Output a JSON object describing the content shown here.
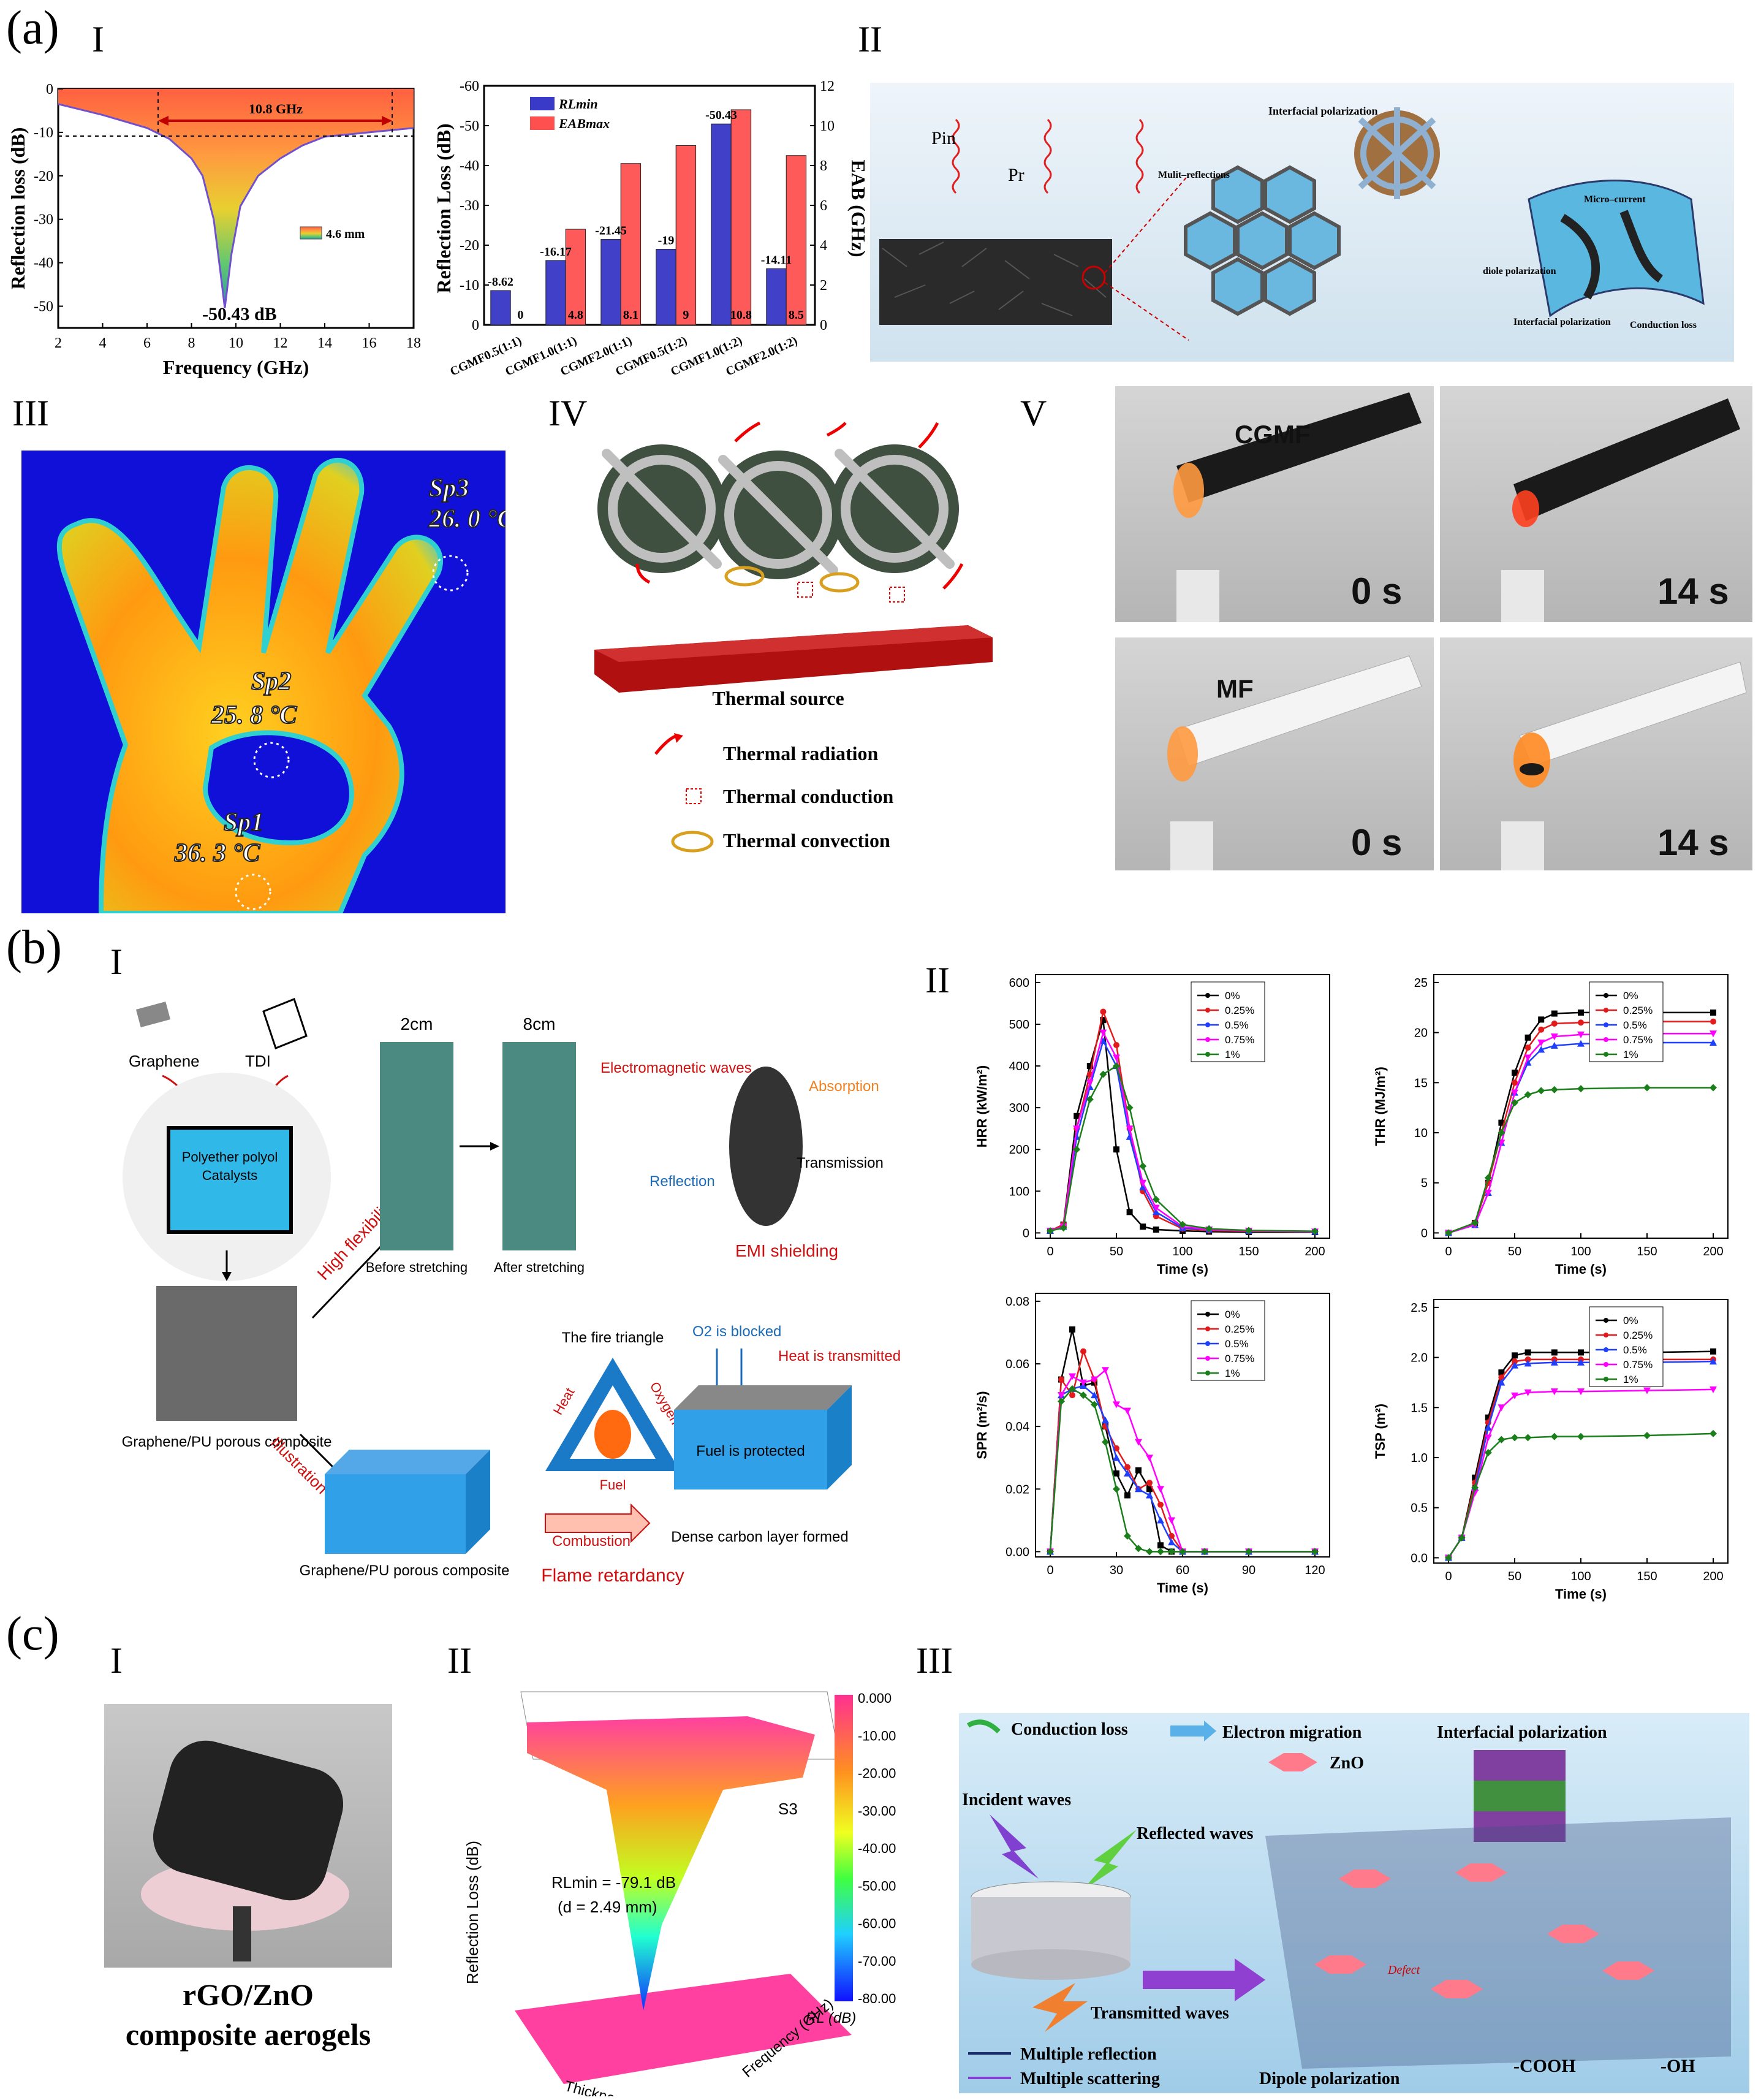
{
  "labels": {
    "a": "(a)",
    "b": "(b)",
    "c": "(c)",
    "I": "I",
    "II": "II",
    "III": "III",
    "IV": "IV",
    "V": "V"
  },
  "a1_rl": {
    "ylabel": "Reflection loss (dB)",
    "xlabel": "Frequency (GHz)",
    "bandwidth": "10.8 GHz",
    "legend": "4.6 mm",
    "minimum": "-50.43 dB",
    "xticks": [
      "2",
      "4",
      "6",
      "8",
      "10",
      "12",
      "14",
      "16",
      "18"
    ],
    "yticks": [
      "0",
      "-10",
      "-20",
      "-30",
      "-40",
      "-50"
    ]
  },
  "a1_bar": {
    "ylabel": "Reflection Loss (dB)",
    "y2label": "EAB (GHz)",
    "legend_rl": "RLmin",
    "legend_eab": "EABmax",
    "yticks": [
      "-60",
      "-50",
      "-40",
      "-30",
      "-20",
      "-10",
      "0"
    ],
    "y2ticks": [
      "12",
      "10",
      "8",
      "6",
      "4",
      "2",
      "0"
    ]
  },
  "a2": {
    "pin": "Pin",
    "pr": "Pr",
    "interfacial": "Interfacial polarization",
    "multi": "Mulit–reflections",
    "micro": "Micro–current",
    "diole": "diole polarization",
    "interfacial2": "Interfacial polarization",
    "conduction": "Conduction loss"
  },
  "a3": {
    "sp3": "Sp3",
    "sp3_val": "26. 0 °C",
    "sp2": "Sp2",
    "sp2_val": "25. 8 °C",
    "sp1": "Sp1",
    "sp1_val": "36. 3 °C"
  },
  "a4": {
    "source": "Thermal source",
    "radiation": "Thermal radiation",
    "conduction": "Thermal conduction",
    "convection": "Thermal convection"
  },
  "a5": {
    "cgmf": "CGMF",
    "mf": "MF",
    "t0a": "0 s",
    "t14a": "14 s",
    "t0b": "0 s",
    "t14b": "14 s"
  },
  "b1": {
    "graphene": "Graphene",
    "tdi": "TDI",
    "polyol": "Polyether polyol",
    "catalysts": "Catalysts",
    "high_flex": "High flexibility",
    "c2": "2cm",
    "c8": "8cm",
    "before": "Before stretching",
    "after": "After stretching",
    "em_waves": "Electromagnetic waves",
    "absorption": "Absorption",
    "transmission": "Transmission",
    "reflection": "Reflection",
    "emi": "EMI shielding",
    "composite1": "Graphene/PU porous composite",
    "illustration": "Illustration",
    "fire_triangle": "The fire triangle",
    "heat": "Heat",
    "oxygen": "Oxygen",
    "fuel": "Fuel",
    "o2_blocked": "O2 is blocked",
    "heat_trans": "Heat is transmitted",
    "fuel_protected": "Fuel is protected",
    "composite2": "Graphene/PU porous composite",
    "combustion": "Combustion",
    "dense": "Dense carbon layer formed",
    "flame": "Flame retardancy"
  },
  "b2": {
    "legend": [
      "0%",
      "0.25%",
      "0.5%",
      "0.75%",
      "1%"
    ],
    "hrr": {
      "ylabel": "HRR (kW/m²)",
      "xlabel": "Time (s)"
    },
    "thr": {
      "ylabel": "THR (MJ/m²)",
      "xlabel": "Time (s)"
    },
    "spr": {
      "ylabel": "SPR (m²/s)",
      "xlabel": "Time (s)"
    },
    "tsp": {
      "ylabel": "TSP (m²)",
      "xlabel": "Time (s)"
    }
  },
  "c1": {
    "caption1": "rGO/ZnO",
    "caption2": "composite aerogels"
  },
  "c2": {
    "zlabel": "Reflection Loss (dB)",
    "xlabel": "Thickness (mm)",
    "ylabel": "Frequency (GHz)",
    "s3": "S3",
    "rlmin": "RLmin = -79.1 dB",
    "d": "(d = 2.49 mm)",
    "cb_label": "RL (dB)",
    "cb_ticks": [
      "0.000",
      "-10.00",
      "-20.00",
      "-30.00",
      "-40.00",
      "-50.00",
      "-60.00",
      "-70.00",
      "-80.00"
    ]
  },
  "c3": {
    "conduction": "Conduction loss",
    "electron": "Electron migration",
    "interfacial": "Interfacial polarization",
    "zno": "ZnO",
    "incident": "Incident waves",
    "reflected": "Reflected waves",
    "transmitted": "Transmitted waves",
    "multi_ref": "Multiple reflection",
    "multi_scat": "Multiple scattering",
    "dipole": "Dipole polarization",
    "defect": "Defect",
    "cooh": "-COOH",
    "oh": "-OH"
  },
  "chart_data": [
    {
      "type": "line",
      "title": "",
      "xlabel": "Frequency (GHz)",
      "ylabel": "Reflection loss (dB)",
      "xlim": [
        2,
        18
      ],
      "ylim": [
        -55,
        0
      ],
      "series": [
        {
          "name": "4.6 mm",
          "x": [
            2,
            4,
            6,
            7,
            8,
            8.5,
            9,
            9.3,
            9.5,
            9.8,
            10.2,
            11,
            12,
            13,
            14,
            15,
            16,
            17,
            18
          ],
          "values": [
            -3.5,
            -6,
            -9,
            -11.5,
            -16,
            -20,
            -30,
            -42,
            -50.43,
            -38,
            -27,
            -20,
            -16,
            -13,
            -11,
            -10.5,
            -10,
            -9.5,
            -9
          ]
        }
      ]
    },
    {
      "type": "bar",
      "categories": [
        "CGMF0.5(1:1)",
        "CGMF1.0(1:1)",
        "CGMF2.0(1:1)",
        "CGMF0.5(1:2)",
        "CGMF1.0(1:2)",
        "CGMF2.0(1:2)"
      ],
      "series": [
        {
          "name": "RLmin",
          "values": [
            -8.62,
            -16.17,
            -21.45,
            -19,
            -50.43,
            -14.11
          ]
        },
        {
          "name": "EABmax",
          "values": [
            0,
            4.8,
            8.1,
            9,
            10.8,
            8.5
          ]
        }
      ],
      "ylabel": "Reflection Loss (dB)",
      "y2label": "EAB (GHz)",
      "ylim": [
        0,
        -60
      ],
      "y2lim": [
        0,
        12
      ]
    },
    {
      "type": "line",
      "xlabel": "Time (s)",
      "ylabel": "HRR (kW/m²)",
      "xlim": [
        0,
        200
      ],
      "ylim": [
        0,
        600
      ],
      "x": [
        0,
        10,
        20,
        30,
        40,
        50,
        60,
        70,
        80,
        100,
        120,
        150,
        200
      ],
      "series": [
        {
          "name": "0%",
          "values": [
            5,
            20,
            280,
            400,
            510,
            200,
            50,
            15,
            8,
            5,
            3,
            2,
            2
          ]
        },
        {
          "name": "0.25%",
          "values": [
            5,
            20,
            250,
            380,
            530,
            450,
            250,
            100,
            40,
            10,
            6,
            4,
            3
          ]
        },
        {
          "name": "0.5%",
          "values": [
            5,
            15,
            230,
            350,
            460,
            400,
            230,
            110,
            50,
            12,
            8,
            5,
            3
          ]
        },
        {
          "name": "0.75%",
          "values": [
            5,
            15,
            250,
            360,
            480,
            420,
            250,
            120,
            60,
            15,
            8,
            5,
            3
          ]
        },
        {
          "name": "1%",
          "values": [
            5,
            12,
            200,
            320,
            380,
            400,
            300,
            160,
            80,
            20,
            10,
            6,
            4
          ]
        }
      ]
    },
    {
      "type": "line",
      "xlabel": "Time (s)",
      "ylabel": "THR (MJ/m²)",
      "xlim": [
        0,
        200
      ],
      "ylim": [
        0,
        25
      ],
      "x": [
        0,
        20,
        30,
        40,
        50,
        60,
        70,
        80,
        100,
        150,
        200
      ],
      "series": [
        {
          "name": "0%",
          "values": [
            0,
            1,
            5,
            11,
            16,
            19.5,
            21.3,
            21.9,
            22,
            22,
            22
          ]
        },
        {
          "name": "0.25%",
          "values": [
            0,
            1,
            5,
            10,
            15,
            18.5,
            20.3,
            20.9,
            21,
            21.1,
            21.1
          ]
        },
        {
          "name": "0.5%",
          "values": [
            0,
            0.8,
            4,
            9,
            14,
            17,
            18.3,
            18.7,
            18.9,
            19,
            19
          ]
        },
        {
          "name": "0.75%",
          "values": [
            0,
            0.8,
            4,
            9,
            14,
            17.5,
            19,
            19.6,
            19.8,
            19.9,
            19.9
          ]
        },
        {
          "name": "1%",
          "values": [
            0,
            1,
            5.5,
            10,
            13,
            13.8,
            14.2,
            14.3,
            14.4,
            14.5,
            14.5
          ]
        }
      ]
    },
    {
      "type": "line",
      "xlabel": "Time (s)",
      "ylabel": "SPR (m²/s)",
      "xlim": [
        0,
        120
      ],
      "ylim": [
        0,
        0.08
      ],
      "x": [
        0,
        5,
        10,
        15,
        20,
        25,
        30,
        35,
        40,
        45,
        50,
        55,
        60,
        70,
        90,
        120
      ],
      "series": [
        {
          "name": "0%",
          "values": [
            0,
            0.055,
            0.071,
            0.053,
            0.054,
            0.04,
            0.025,
            0.018,
            0.026,
            0.02,
            0.002,
            0,
            0,
            0,
            0,
            0
          ]
        },
        {
          "name": "0.25%",
          "values": [
            0,
            0.055,
            0.05,
            0.064,
            0.055,
            0.04,
            0.033,
            0.027,
            0.02,
            0.022,
            0.015,
            0.005,
            0,
            0,
            0,
            0
          ]
        },
        {
          "name": "0.5%",
          "values": [
            0,
            0.05,
            0.052,
            0.053,
            0.05,
            0.042,
            0.03,
            0.025,
            0.02,
            0.018,
            0.01,
            0.003,
            0,
            0,
            0,
            0
          ]
        },
        {
          "name": "0.75%",
          "values": [
            0,
            0.05,
            0.056,
            0.054,
            0.055,
            0.058,
            0.047,
            0.045,
            0.035,
            0.03,
            0.02,
            0.01,
            0,
            0,
            0,
            0
          ]
        },
        {
          "name": "1%",
          "values": [
            0,
            0.048,
            0.052,
            0.05,
            0.047,
            0.035,
            0.02,
            0.005,
            0.001,
            0,
            0,
            0,
            0,
            0,
            0,
            0
          ]
        }
      ]
    },
    {
      "type": "line",
      "xlabel": "Time (s)",
      "ylabel": "TSP (m²)",
      "xlim": [
        0,
        200
      ],
      "ylim": [
        0,
        2.5
      ],
      "x": [
        0,
        10,
        20,
        30,
        40,
        50,
        60,
        80,
        100,
        150,
        200
      ],
      "series": [
        {
          "name": "0%",
          "values": [
            0,
            0.2,
            0.8,
            1.4,
            1.85,
            2.02,
            2.05,
            2.05,
            2.05,
            2.05,
            2.06
          ]
        },
        {
          "name": "0.25%",
          "values": [
            0,
            0.2,
            0.75,
            1.35,
            1.8,
            1.96,
            1.98,
            1.98,
            1.98,
            1.98,
            1.98
          ]
        },
        {
          "name": "0.5%",
          "values": [
            0,
            0.2,
            0.7,
            1.3,
            1.75,
            1.92,
            1.94,
            1.95,
            1.95,
            1.95,
            1.96
          ]
        },
        {
          "name": "0.75%",
          "values": [
            0,
            0.2,
            0.65,
            1.2,
            1.5,
            1.62,
            1.65,
            1.66,
            1.66,
            1.67,
            1.68
          ]
        },
        {
          "name": "1%",
          "values": [
            0,
            0.2,
            0.7,
            1.05,
            1.18,
            1.2,
            1.2,
            1.21,
            1.21,
            1.22,
            1.24
          ]
        }
      ]
    }
  ],
  "colors": {
    "black": "#000000",
    "red": "#e31a1c",
    "blue": "#1f3fff",
    "magenta": "#ff00ff",
    "green": "#1a7f1a"
  }
}
